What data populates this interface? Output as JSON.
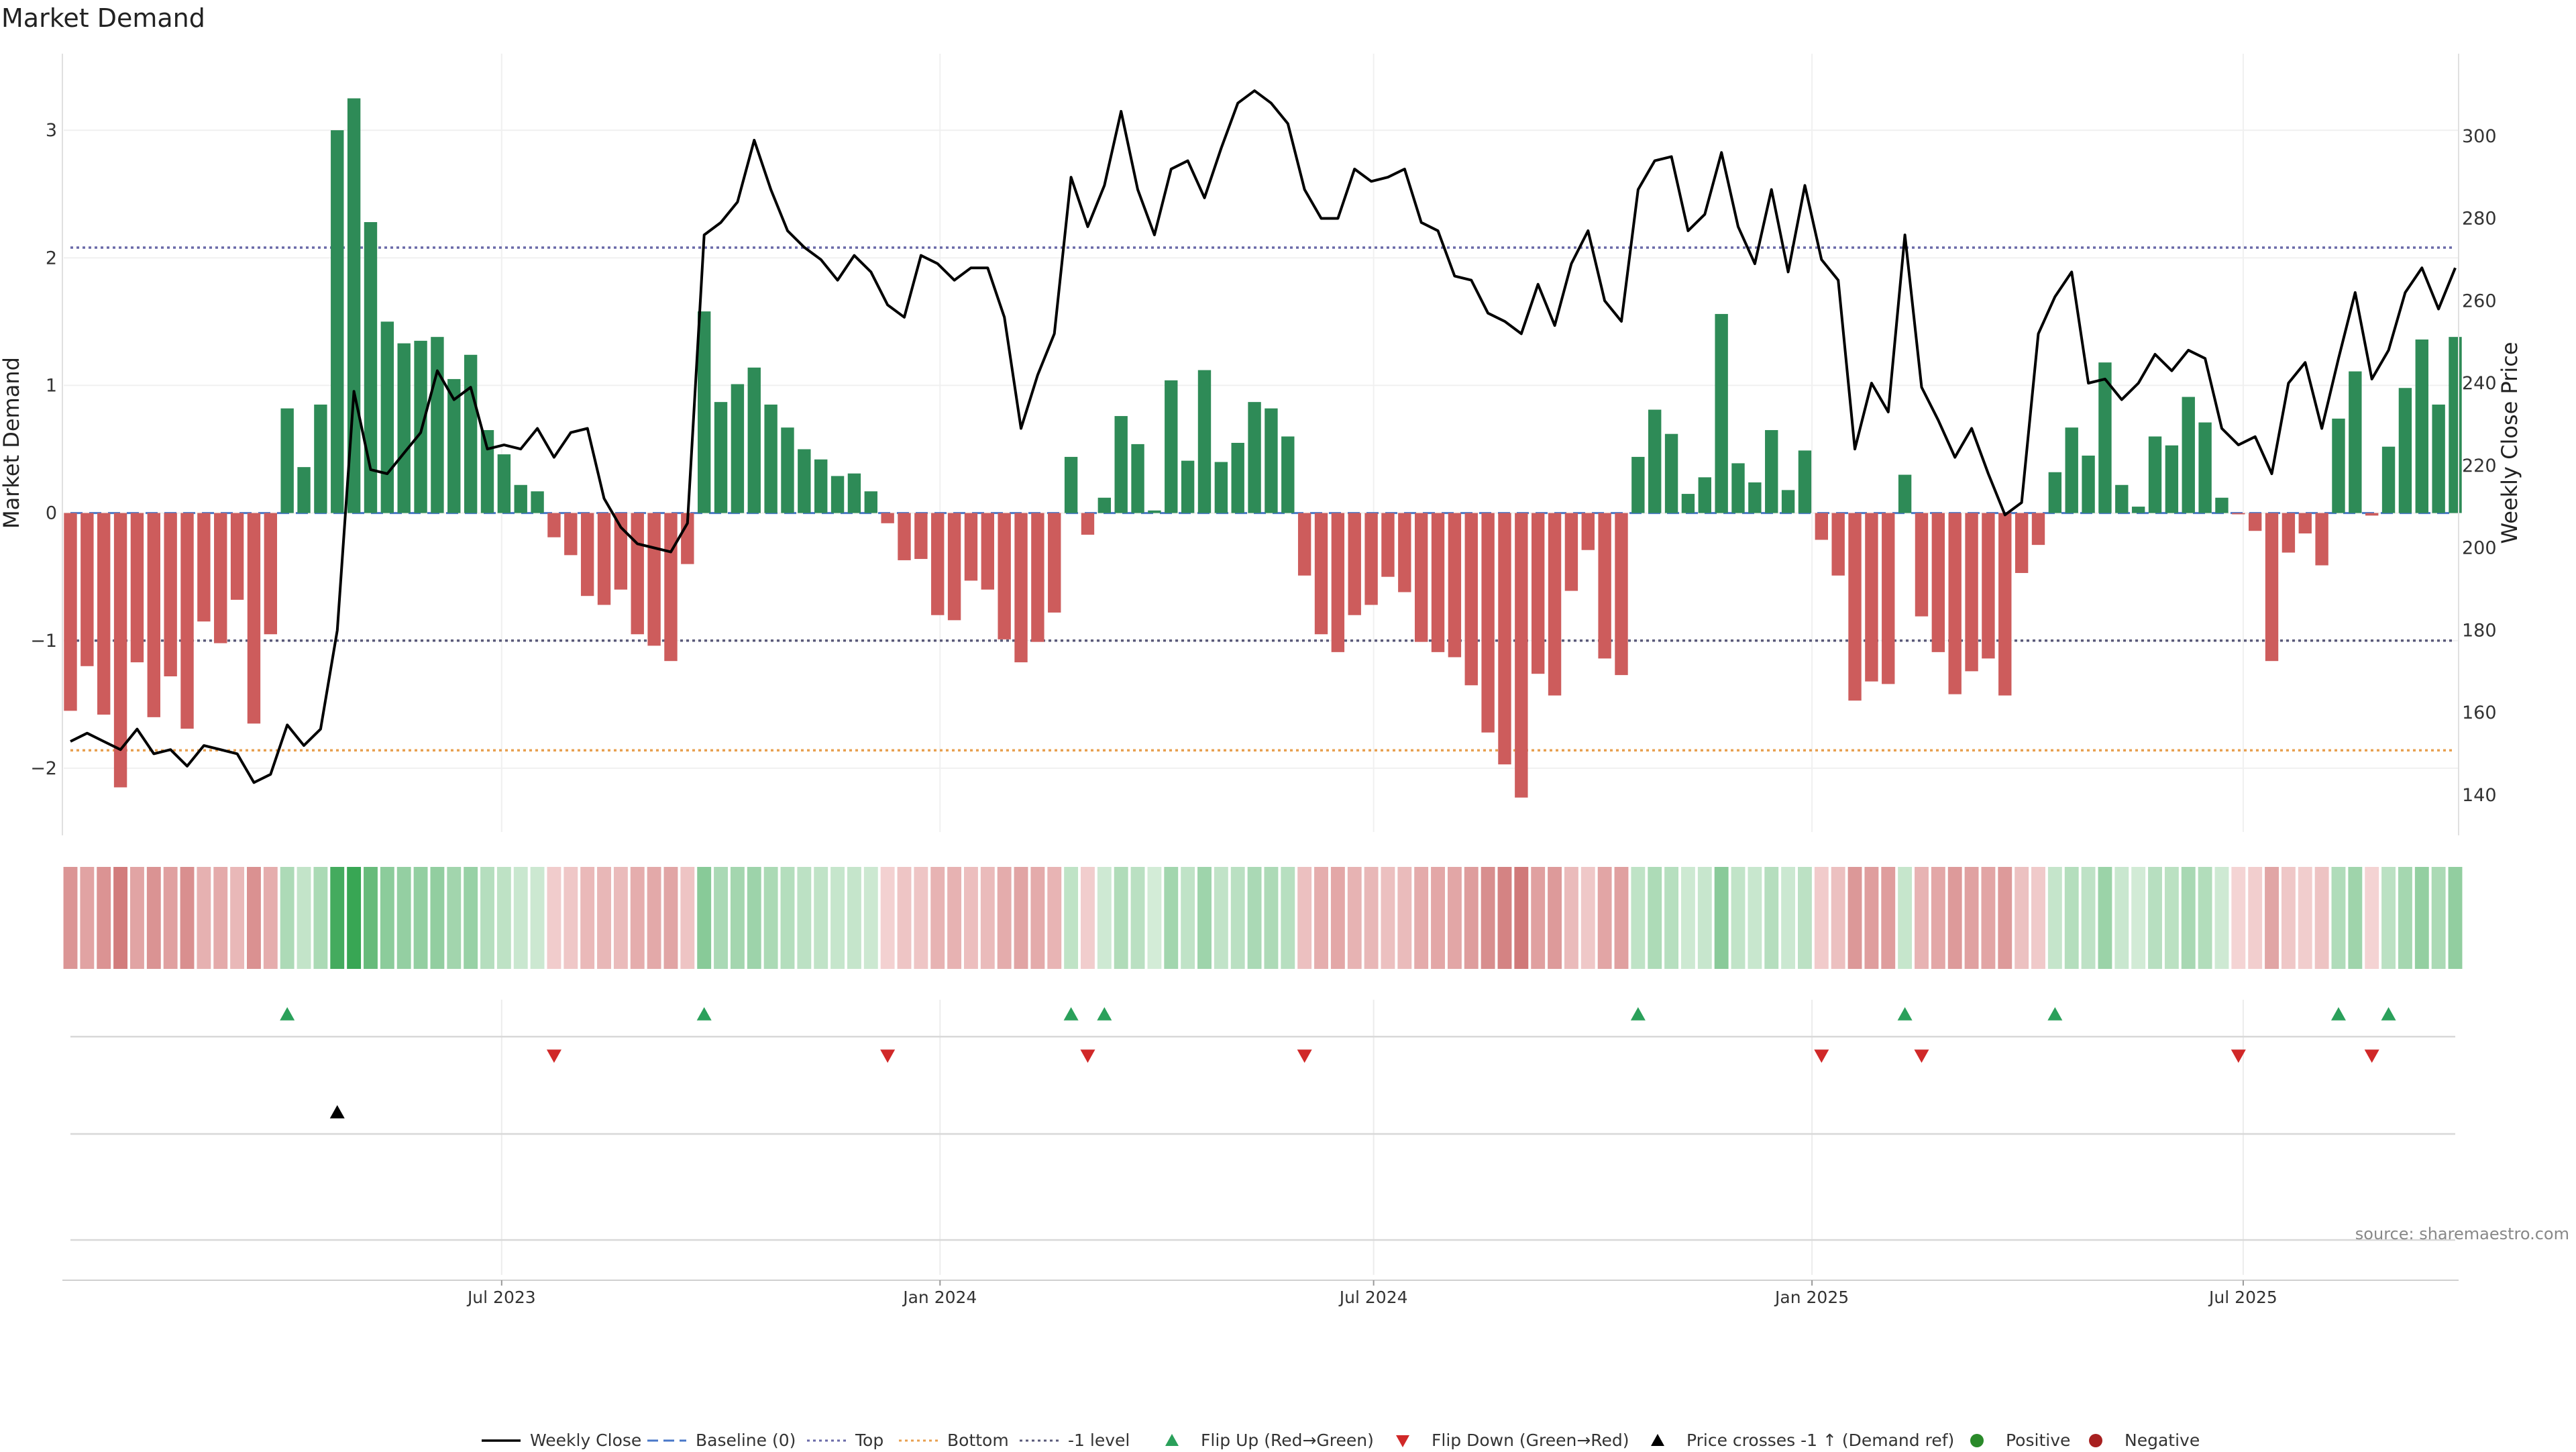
{
  "chart_data": {
    "type": "bar",
    "title": "Market Demand",
    "ylabel_left": "Market Demand",
    "ylabel_right": "Weekly Close Price",
    "xlabel": "",
    "ylim_left": [
      -2.5,
      3.6
    ],
    "ylim_right": [
      131,
      320
    ],
    "yticks_left": [
      -2,
      -1,
      0,
      1,
      2,
      3
    ],
    "yticks_left_labels": [
      "−2",
      "−1",
      "0",
      "1",
      "2",
      "3"
    ],
    "yticks_right": [
      140,
      160,
      180,
      200,
      220,
      240,
      260,
      280,
      300
    ],
    "date_range": [
      "2023-01-01",
      "2025-09-28"
    ],
    "week_interval_days": 7,
    "x_ticks": [
      {
        "date": "2023-07-01",
        "label": "Jul 2023"
      },
      {
        "date": "2024-01-01",
        "label": "Jan 2024"
      },
      {
        "date": "2024-07-01",
        "label": "Jul 2024"
      },
      {
        "date": "2025-01-01",
        "label": "Jan 2025"
      },
      {
        "date": "2025-07-01",
        "label": "Jul 2025"
      }
    ],
    "reference_lines": [
      {
        "name": "Top",
        "value": 2.08,
        "color": "#6a6aa8",
        "style": "dotted"
      },
      {
        "name": "-1 level",
        "value": -1,
        "color": "#5a5a7a",
        "style": "dotted"
      },
      {
        "name": "Bottom",
        "value": -1.86,
        "color": "#e8a050",
        "style": "dotted"
      },
      {
        "name": "Baseline (0)",
        "value": 0,
        "color": "#4a78c8",
        "style": "dashed"
      }
    ],
    "demand": [
      -1.55,
      -1.2,
      -1.58,
      -2.15,
      -1.17,
      -1.6,
      -1.28,
      -1.69,
      -0.85,
      -1.02,
      -0.68,
      -1.65,
      -0.95,
      0.82,
      0.36,
      0.85,
      3.0,
      3.25,
      2.28,
      1.5,
      1.33,
      1.35,
      1.38,
      1.05,
      1.24,
      0.65,
      0.46,
      0.22,
      0.17,
      -0.19,
      -0.33,
      -0.65,
      -0.72,
      -0.6,
      -0.95,
      -1.04,
      -1.16,
      -0.4,
      1.58,
      0.87,
      1.01,
      1.14,
      0.85,
      0.67,
      0.5,
      0.42,
      0.29,
      0.31,
      0.17,
      -0.08,
      -0.37,
      -0.36,
      -0.8,
      -0.84,
      -0.53,
      -0.6,
      -0.99,
      -1.17,
      -1.01,
      -0.78,
      0.44,
      -0.17,
      0.12,
      0.76,
      0.54,
      0.02,
      1.04,
      0.41,
      1.12,
      0.4,
      0.55,
      0.87,
      0.82,
      0.6,
      -0.49,
      -0.95,
      -1.09,
      -0.8,
      -0.72,
      -0.5,
      -0.62,
      -1.01,
      -1.09,
      -1.13,
      -1.35,
      -1.72,
      -1.97,
      -2.23,
      -1.26,
      -1.43,
      -0.61,
      -0.29,
      -1.14,
      -1.27,
      0.44,
      0.81,
      0.62,
      0.15,
      0.28,
      1.56,
      0.39,
      0.24,
      0.65,
      0.18,
      0.49,
      -0.21,
      -0.49,
      -1.47,
      -1.32,
      -1.34,
      0.3,
      -0.81,
      -1.09,
      -1.42,
      -1.24,
      -1.14,
      -1.43,
      -0.47,
      -0.25,
      0.32,
      0.67,
      0.45,
      1.18,
      0.22,
      0.05,
      0.6,
      0.53,
      0.91,
      0.71,
      0.12,
      -0.01,
      -0.14,
      -1.16,
      -0.31,
      -0.16,
      -0.41,
      0.74,
      1.11,
      -0.02,
      0.52,
      0.98,
      1.36,
      0.85,
      1.38
    ],
    "weekly_close": [
      153,
      155,
      153,
      151,
      156,
      150,
      151,
      147,
      152,
      151,
      150,
      143,
      145,
      157,
      152,
      156,
      180,
      238,
      219,
      218,
      223,
      228,
      243,
      236,
      239,
      224,
      225,
      224,
      229,
      222,
      228,
      229,
      212,
      205,
      201,
      200,
      199,
      206,
      276,
      279,
      284,
      299,
      287,
      277,
      273,
      270,
      265,
      271,
      267,
      259,
      256,
      271,
      269,
      265,
      268,
      268,
      256,
      229,
      242,
      252,
      290,
      278,
      288,
      306,
      287,
      276,
      292,
      294,
      285,
      297,
      308,
      311,
      308,
      303,
      287,
      280,
      280,
      292,
      289,
      290,
      292,
      279,
      277,
      266,
      265,
      257,
      255,
      252,
      264,
      254,
      269,
      277,
      260,
      255,
      287,
      294,
      295,
      277,
      281,
      296,
      278,
      269,
      287,
      267,
      288,
      270,
      265,
      224,
      240,
      233,
      276,
      239,
      231,
      222,
      229,
      218,
      208,
      211,
      252,
      261,
      267,
      240,
      241,
      236,
      240,
      247,
      243,
      248,
      246,
      229,
      225,
      227,
      218,
      240,
      245,
      229,
      246,
      262,
      241,
      248,
      262,
      268,
      258,
      268
    ],
    "flip_up_weeks": [
      13,
      38,
      60,
      62,
      94,
      110,
      119,
      136,
      139
    ],
    "flip_down_weeks": [
      29,
      49,
      61,
      74,
      105,
      111,
      130,
      138
    ],
    "price_cross_weeks": [
      16
    ],
    "heat_colors": {
      "positive_strong": "#38a654",
      "positive_weak": "#d4ecd8",
      "negative_strong": "#d07878",
      "negative_weak": "#f4d4d4"
    },
    "legend": [
      {
        "label": "Weekly Close",
        "kind": "line",
        "color": "#000000"
      },
      {
        "label": "Baseline (0)",
        "kind": "dashed",
        "color": "#4a78c8"
      },
      {
        "label": "Top",
        "kind": "dotted",
        "color": "#6a6aa8"
      },
      {
        "label": "Bottom",
        "kind": "dotted",
        "color": "#e8a050"
      },
      {
        "label": "-1 level",
        "kind": "dotted",
        "color": "#5a5a7a"
      },
      {
        "label": "Flip Up (Red→Green)",
        "kind": "tri-up",
        "color": "#2aa05a"
      },
      {
        "label": "Flip Down (Green→Red)",
        "kind": "tri-down",
        "color": "#d02828"
      },
      {
        "label": "Price crosses -1 ↑ (Demand ref)",
        "kind": "tri-up",
        "color": "#000000"
      },
      {
        "label": "Positive",
        "kind": "dot",
        "color": "#2a8a2a"
      },
      {
        "label": "Negative",
        "kind": "dot",
        "color": "#a82020"
      }
    ],
    "source": "source: sharemaestro.com",
    "colors": {
      "bar_positive": "#2e8b57",
      "bar_negative": "#cd5c5c",
      "price_line": "#000000"
    }
  }
}
